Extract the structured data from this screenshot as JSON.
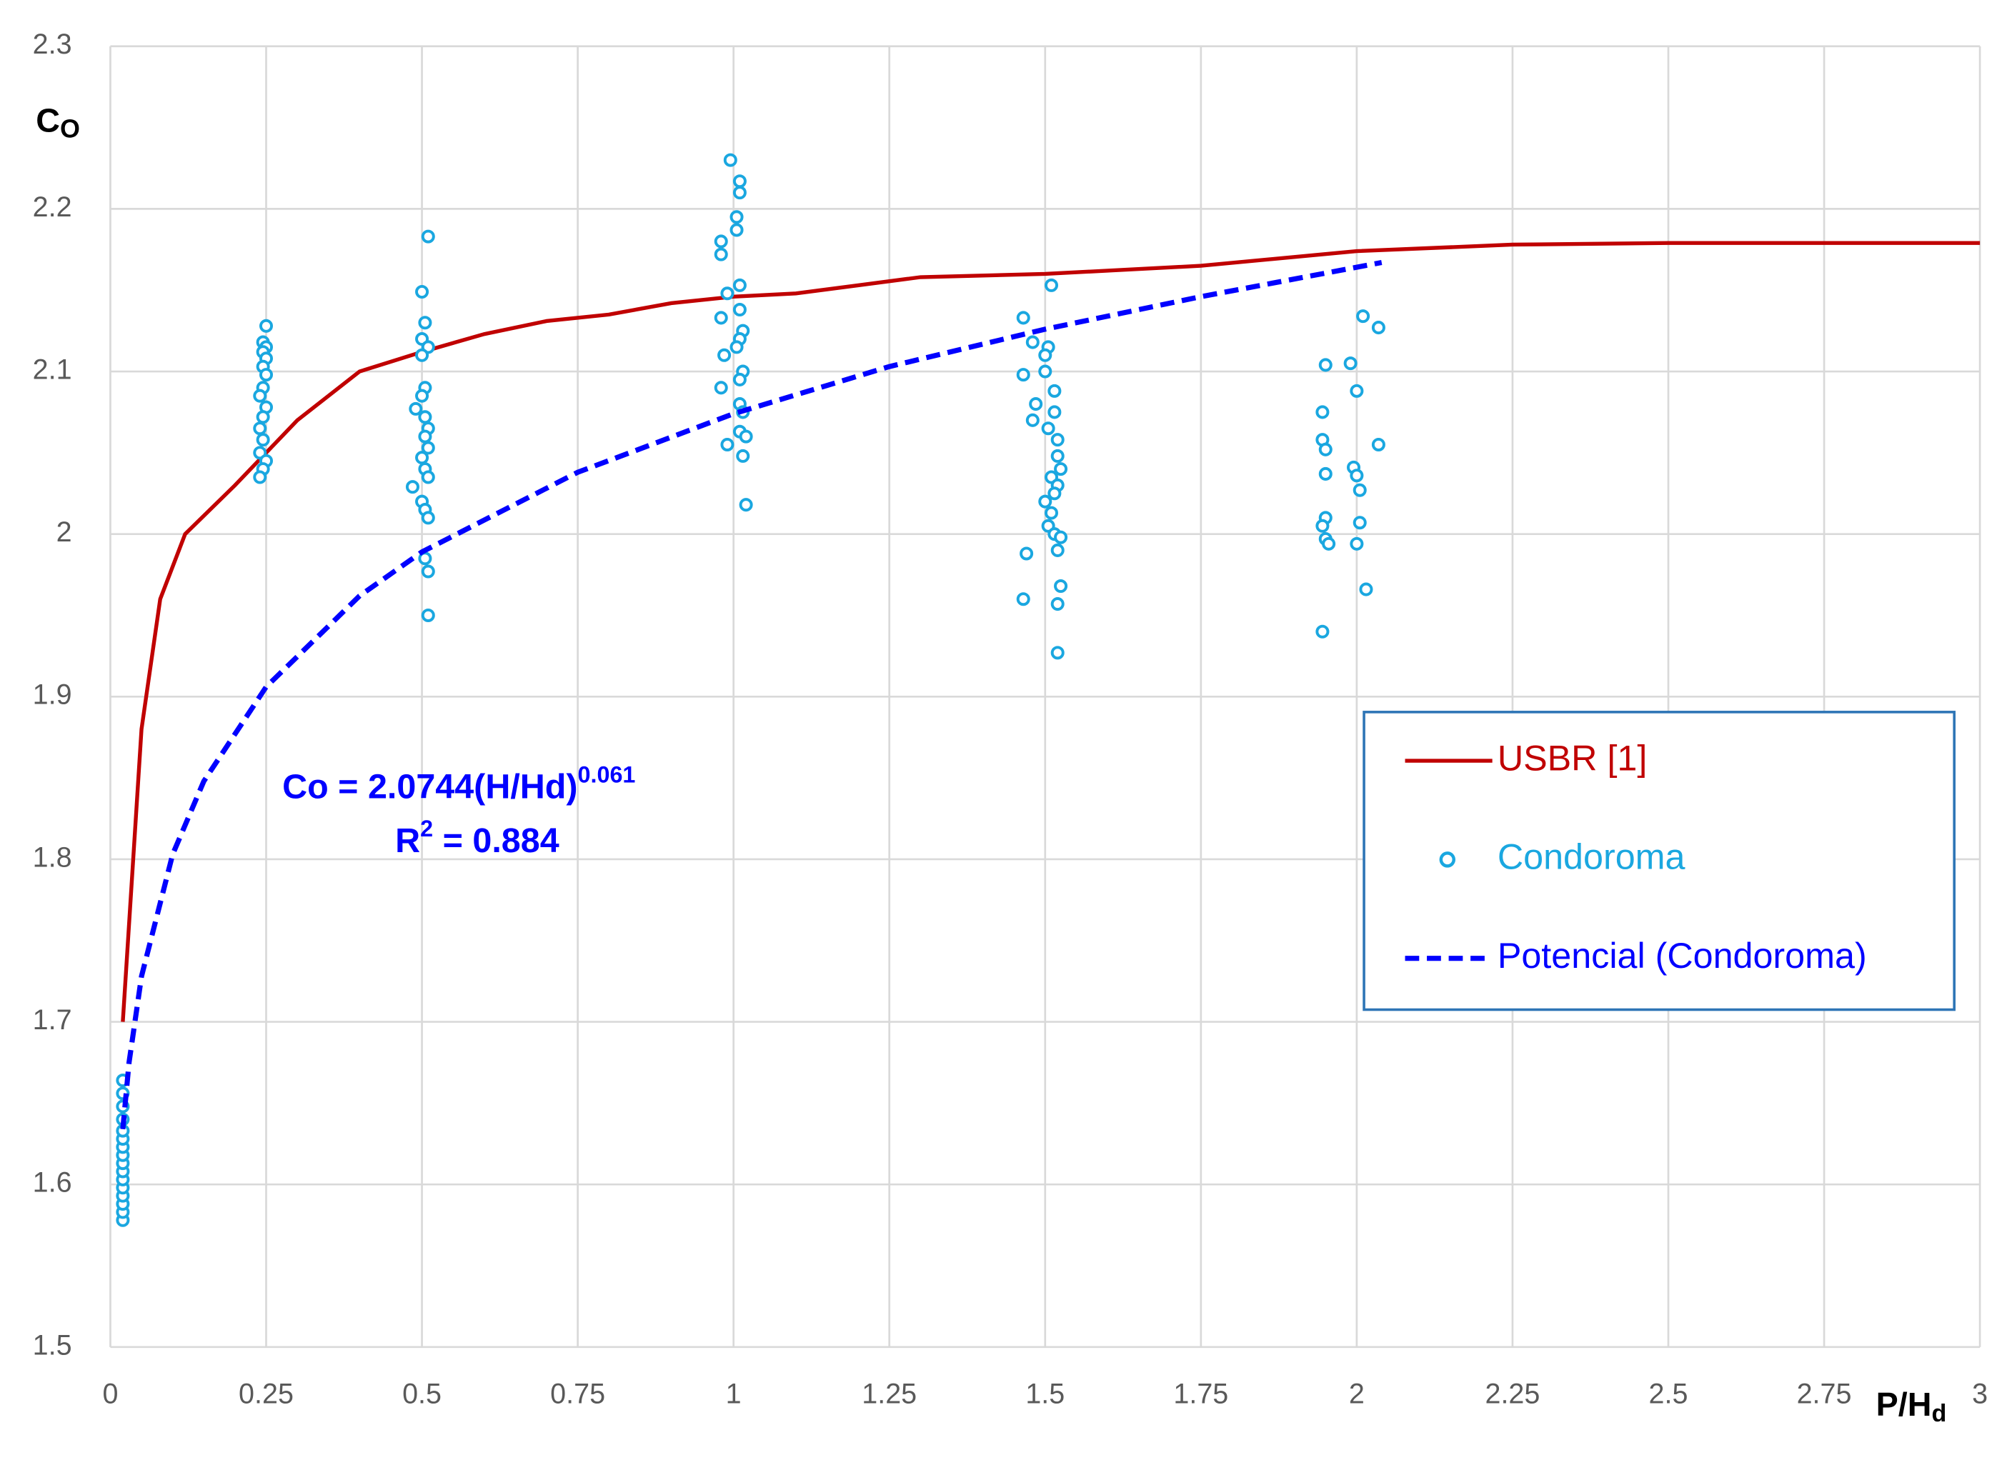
{
  "chart_data": {
    "type": "scatter",
    "x_label": "P/H",
    "x_label_sub": "d",
    "y_label": "C",
    "y_label_sub": "O",
    "xlim": [
      0,
      3
    ],
    "xticks": [
      0,
      0.25,
      0.5,
      0.75,
      1,
      1.25,
      1.5,
      1.75,
      2,
      2.25,
      2.5,
      2.75,
      3
    ],
    "ylim": [
      1.5,
      2.3
    ],
    "yticks": [
      1.5,
      1.6,
      1.7,
      1.8,
      1.9,
      2,
      2.1,
      2.2,
      2.3
    ],
    "grid": true,
    "legend": "right",
    "annotation": {
      "equation": "Co = 2.0744(H/Hd)",
      "equation_exp": "0.061",
      "r2_base": "R",
      "r2_exp": "2",
      "r2_rest": " = 0.884"
    },
    "series": [
      {
        "name": "USBR [1]",
        "color": "#c00000",
        "style": "solid",
        "x": [
          0.02,
          0.05,
          0.08,
          0.12,
          0.2,
          0.3,
          0.4,
          0.5,
          0.6,
          0.7,
          0.8,
          0.9,
          1.0,
          1.1,
          1.2,
          1.3,
          1.5,
          1.75,
          2.0,
          2.25,
          2.5,
          3.0
        ],
        "values": [
          1.7,
          1.88,
          1.96,
          2.0,
          2.03,
          2.07,
          2.1,
          2.112,
          2.123,
          2.131,
          2.135,
          2.142,
          2.146,
          2.148,
          2.153,
          2.158,
          2.16,
          2.165,
          2.174,
          2.178,
          2.179,
          2.179
        ]
      },
      {
        "name": "Condoroma",
        "color": "#1aa7e0",
        "style": "markers",
        "x": [
          0.02,
          0.02,
          0.02,
          0.02,
          0.02,
          0.02,
          0.02,
          0.02,
          0.02,
          0.02,
          0.02,
          0.02,
          0.02,
          0.02,
          0.02,
          0.02,
          0.25,
          0.245,
          0.25,
          0.245,
          0.25,
          0.245,
          0.25,
          0.245,
          0.24,
          0.25,
          0.245,
          0.24,
          0.245,
          0.24,
          0.25,
          0.245,
          0.24,
          0.51,
          0.5,
          0.505,
          0.5,
          0.51,
          0.5,
          0.505,
          0.5,
          0.49,
          0.505,
          0.51,
          0.505,
          0.51,
          0.5,
          0.505,
          0.51,
          0.485,
          0.5,
          0.505,
          0.51,
          0.505,
          0.51,
          0.51,
          0.995,
          1.01,
          1.01,
          1.005,
          1.005,
          0.98,
          0.98,
          1.01,
          0.99,
          1.01,
          0.98,
          1.015,
          1.01,
          1.005,
          0.985,
          1.015,
          1.01,
          0.98,
          1.01,
          1.015,
          1.01,
          1.02,
          0.99,
          1.015,
          1.02,
          1.51,
          1.465,
          1.48,
          1.505,
          1.5,
          1.5,
          1.465,
          1.515,
          1.485,
          1.515,
          1.48,
          1.505,
          1.52,
          1.52,
          1.525,
          1.51,
          1.52,
          1.515,
          1.5,
          1.51,
          1.505,
          1.515,
          1.525,
          1.52,
          1.47,
          1.525,
          1.465,
          1.52,
          1.52,
          2.01,
          2.035,
          1.99,
          1.95,
          2.0,
          1.945,
          2.035,
          1.945,
          1.95,
          1.995,
          1.95,
          2.0,
          2.005,
          1.95,
          2.005,
          1.945,
          1.95,
          2.0,
          1.955,
          2.015,
          1.945
        ],
        "values": [
          1.578,
          1.583,
          1.588,
          1.593,
          1.598,
          1.603,
          1.608,
          1.613,
          1.618,
          1.623,
          1.628,
          1.633,
          1.64,
          1.648,
          1.656,
          1.664,
          2.128,
          2.118,
          2.115,
          2.112,
          2.108,
          2.103,
          2.098,
          2.09,
          2.085,
          2.078,
          2.072,
          2.065,
          2.058,
          2.05,
          2.045,
          2.04,
          2.035,
          2.183,
          2.149,
          2.13,
          2.12,
          2.115,
          2.11,
          2.09,
          2.085,
          2.077,
          2.072,
          2.065,
          2.06,
          2.053,
          2.047,
          2.04,
          2.035,
          2.029,
          2.02,
          2.015,
          2.01,
          1.985,
          1.977,
          1.95,
          2.23,
          2.217,
          2.21,
          2.195,
          2.187,
          2.18,
          2.172,
          2.153,
          2.148,
          2.138,
          2.133,
          2.125,
          2.12,
          2.115,
          2.11,
          2.1,
          2.095,
          2.09,
          2.08,
          2.075,
          2.063,
          2.06,
          2.055,
          2.048,
          2.018,
          2.153,
          2.133,
          2.118,
          2.115,
          2.11,
          2.1,
          2.098,
          2.088,
          2.08,
          2.075,
          2.07,
          2.065,
          2.058,
          2.048,
          2.04,
          2.035,
          2.03,
          2.025,
          2.02,
          2.013,
          2.005,
          2.0,
          1.998,
          1.99,
          1.988,
          1.968,
          1.96,
          1.957,
          1.927,
          2.134,
          2.127,
          2.105,
          2.104,
          2.088,
          2.075,
          2.055,
          2.058,
          2.052,
          2.041,
          2.037,
          2.036,
          2.027,
          2.01,
          2.007,
          2.005,
          1.997,
          1.994,
          1.994,
          1.966,
          1.94
        ]
      },
      {
        "name": "Potencial (Condoroma)",
        "color": "#0000ff",
        "style": "dashed",
        "x": [
          0.02,
          0.03,
          0.05,
          0.1,
          0.15,
          0.25,
          0.4,
          0.5,
          0.75,
          1,
          1.25,
          1.5,
          1.75,
          2.04
        ],
        "values": [
          1.634,
          1.675,
          1.728,
          1.803,
          1.848,
          1.906,
          1.962,
          1.989,
          2.038,
          2.074,
          2.103,
          2.126,
          2.146,
          2.167
        ]
      }
    ]
  }
}
